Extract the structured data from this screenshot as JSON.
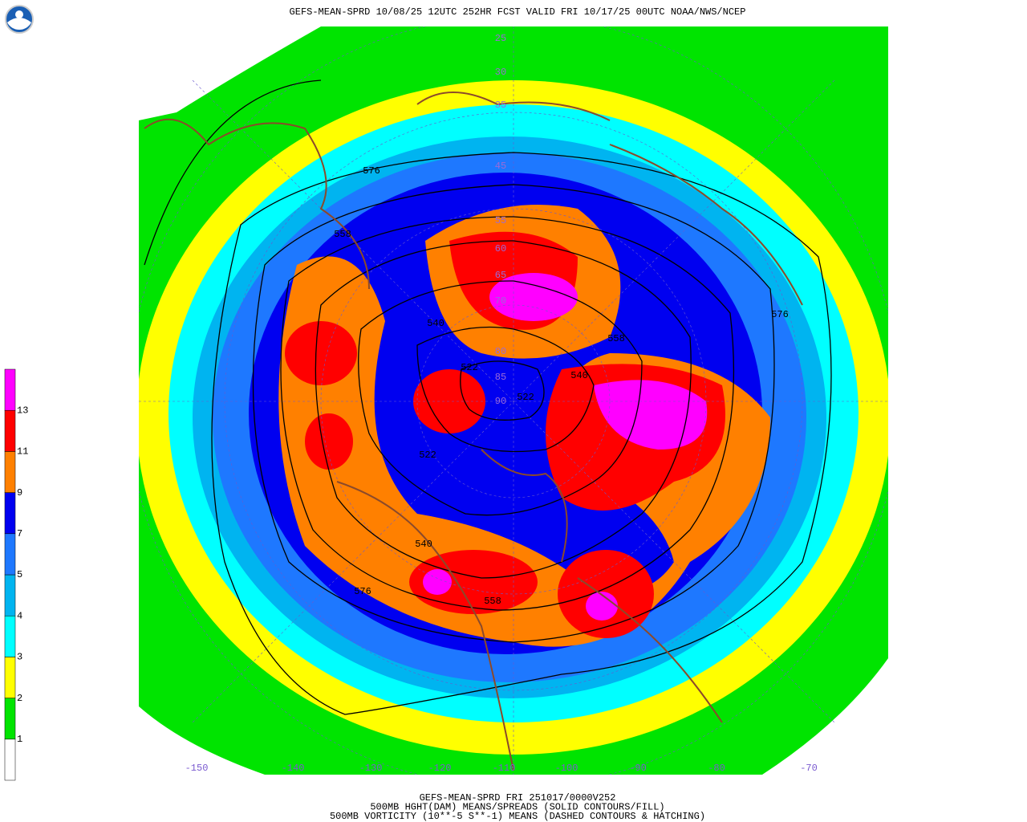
{
  "header": {
    "title": "GEFS-MEAN-SPRD 10/08/25 12UTC 252HR FCST VALID FRI 10/17/25 00UTC NOAA/NWS/NCEP"
  },
  "colorbar": {
    "levels": [
      "1",
      "2",
      "3",
      "4",
      "5",
      "7",
      "9",
      "11",
      "13"
    ],
    "colors": [
      "#ffffff",
      "#00e400",
      "#ffff00",
      "#00ffff",
      "#00b4f0",
      "#1e78ff",
      "#0000f0",
      "#ff8000",
      "#ff0000",
      "#ff00ff"
    ]
  },
  "map": {
    "lat_labels": [
      "25",
      "30",
      "35",
      "45",
      "55",
      "60",
      "65",
      "70",
      "80",
      "85",
      "90"
    ],
    "lon_labels": [
      "-150",
      "-140",
      "-130",
      "-120",
      "-110",
      "-100",
      "-90",
      "-80",
      "-70"
    ],
    "contour_labels": [
      "576",
      "558",
      "540",
      "522",
      "522",
      "540",
      "558",
      "576",
      "540",
      "558",
      "576",
      "522"
    ]
  },
  "footer": {
    "lines": [
      "GEFS-MEAN-SPRD FRI 251017/0000V252",
      "500MB HGHT(DAM) MEANS/SPREADS (SOLID CONTOURS/FILL)",
      "500MB VORTICITY (10**-5 S**-1) MEANS (DASHED CONTOURS & HATCHING)"
    ]
  }
}
